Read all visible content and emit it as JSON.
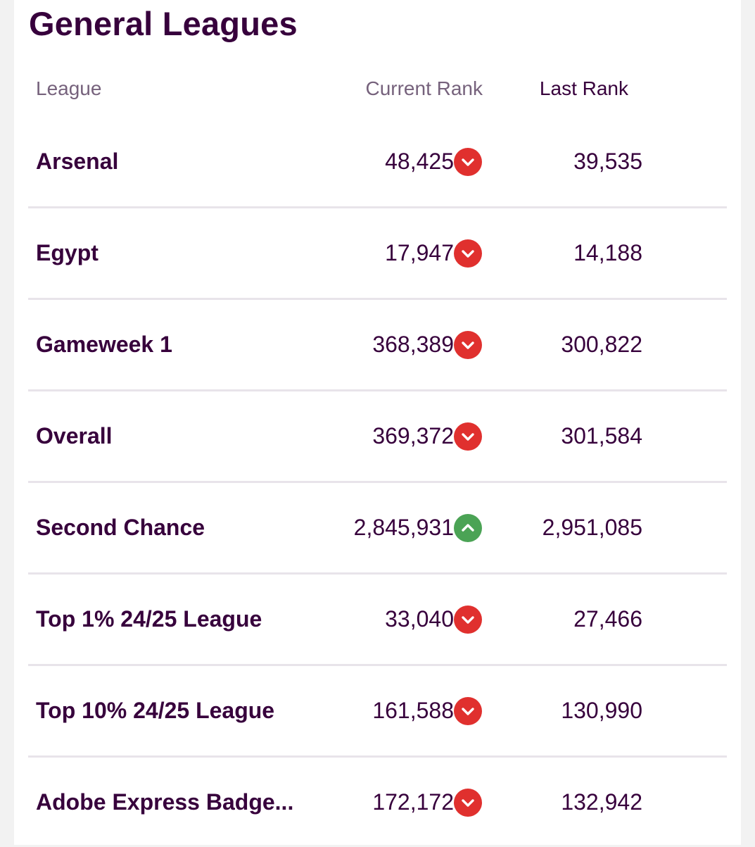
{
  "header": {
    "title": "General Leagues"
  },
  "columns": {
    "league": "League",
    "current_rank": "Current Rank",
    "last_rank": "Last Rank"
  },
  "colors": {
    "down": "#e0302e",
    "up": "#4ba355",
    "text": "#37003c"
  },
  "leagues": [
    {
      "name": "Arsenal",
      "current": "48,425",
      "trend": "down",
      "last": "39,535"
    },
    {
      "name": "Egypt",
      "current": "17,947",
      "trend": "down",
      "last": "14,188"
    },
    {
      "name": "Gameweek 1",
      "current": "368,389",
      "trend": "down",
      "last": "300,822"
    },
    {
      "name": "Overall",
      "current": "369,372",
      "trend": "down",
      "last": "301,584"
    },
    {
      "name": "Second Chance",
      "current": "2,845,931",
      "trend": "up",
      "last": "2,951,085"
    },
    {
      "name": "Top 1% 24/25 League",
      "current": "33,040",
      "trend": "down",
      "last": "27,466"
    },
    {
      "name": "Top 10% 24/25 League",
      "current": "161,588",
      "trend": "down",
      "last": "130,990"
    },
    {
      "name": "Adobe Express Badge...",
      "current": "172,172",
      "trend": "down",
      "last": "132,942"
    }
  ]
}
